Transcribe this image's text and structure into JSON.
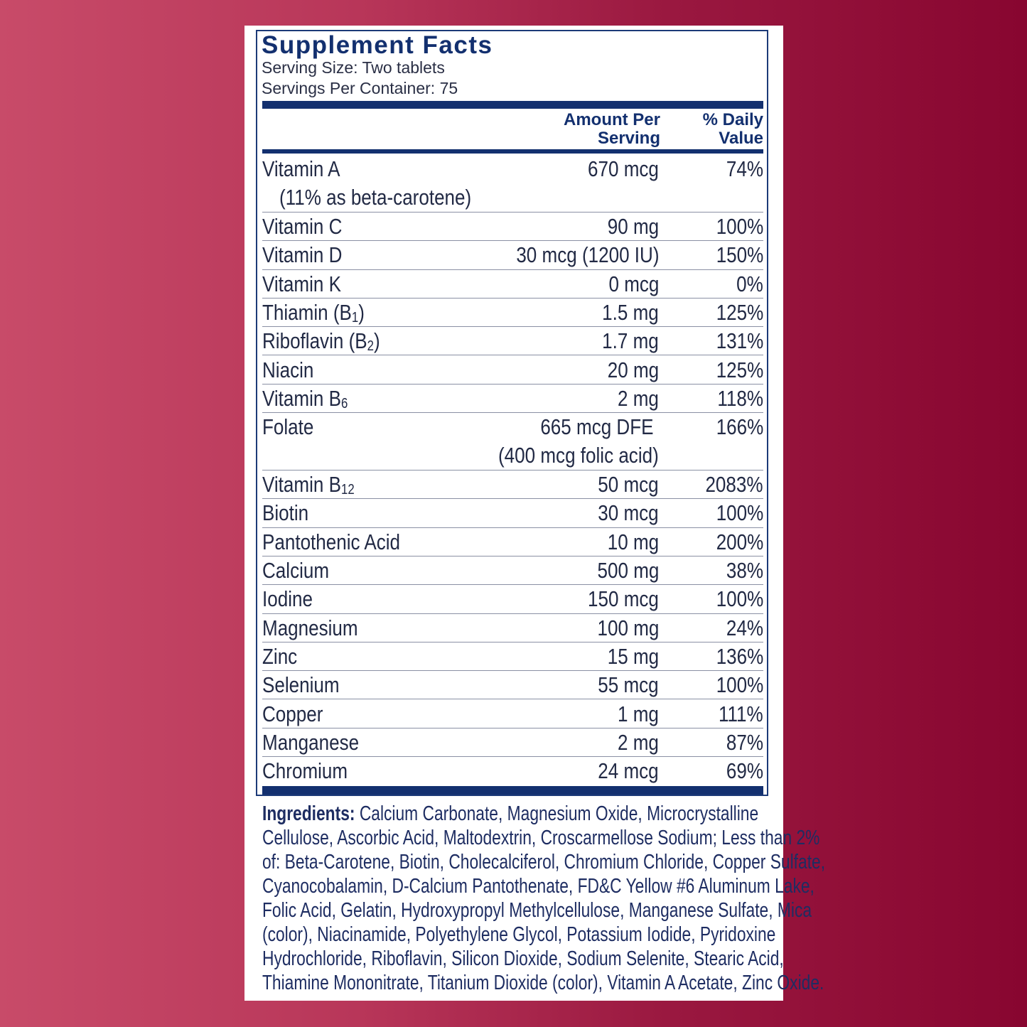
{
  "title": "Supplement Facts",
  "serving_size": "Serving Size: Two tablets",
  "servings_per_container": "Servings Per Container: 75",
  "header": {
    "amount_line1": "Amount Per",
    "amount_line2": "Serving",
    "dv_line1": "% Daily",
    "dv_line2": "Value"
  },
  "rows": [
    {
      "name": "Vitamin A",
      "amount": "670 mcg",
      "dv": "74%",
      "note": "(11% as beta-carotene)"
    },
    {
      "name": "Vitamin C",
      "amount": "90 mg",
      "dv": "100%"
    },
    {
      "name": "Vitamin D",
      "amount": "30 mcg (1200 IU)",
      "dv": "150%"
    },
    {
      "name": "Vitamin K",
      "amount": "0 mcg",
      "dv": "0%"
    },
    {
      "name": "Thiamin (B",
      "sub": "1",
      "tail": ")",
      "amount": "1.5 mg",
      "dv": "125%"
    },
    {
      "name": "Riboflavin (B",
      "sub": "2",
      "tail": ")",
      "amount": "1.7 mg",
      "dv": "131%"
    },
    {
      "name": "Niacin",
      "amount": "20 mg",
      "dv": "125%"
    },
    {
      "name": "Vitamin B",
      "sub": "6",
      "tail": "",
      "amount": "2 mg",
      "dv": "118%"
    },
    {
      "name": "Folate",
      "amount": "665 mcg DFE",
      "dv": "166%",
      "amount_note": "(400 mcg folic acid)"
    },
    {
      "name": "Vitamin B",
      "sub": "12",
      "tail": "",
      "amount": "50 mcg",
      "dv": "2083%"
    },
    {
      "name": "Biotin",
      "amount": "30 mcg",
      "dv": "100%"
    },
    {
      "name": "Pantothenic Acid",
      "amount": "10 mg",
      "dv": "200%"
    },
    {
      "name": "Calcium",
      "amount": "500 mg",
      "dv": "38%"
    },
    {
      "name": "Iodine",
      "amount": "150 mcg",
      "dv": "100%"
    },
    {
      "name": "Magnesium",
      "amount": "100 mg",
      "dv": "24%"
    },
    {
      "name": "Zinc",
      "amount": "15 mg",
      "dv": "136%"
    },
    {
      "name": "Selenium",
      "amount": "55 mcg",
      "dv": "100%"
    },
    {
      "name": "Copper",
      "amount": "1 mg",
      "dv": "111%"
    },
    {
      "name": "Manganese",
      "amount": "2 mg",
      "dv": "87%"
    },
    {
      "name": "Chromium",
      "amount": "24 mcg",
      "dv": "69%"
    }
  ],
  "ingredients": {
    "label": "Ingredients:",
    "lines": [
      " Calcium Carbonate, Magnesium Oxide, Microcrystalline",
      "Cellulose, Ascorbic Acid, Maltodextrin, Croscarmellose Sodium; Less than 2%",
      "of: Beta-Carotene, Biotin, Cholecalciferol, Chromium Chloride, Copper Sulfate,",
      "Cyanocobalamin, D-Calcium Pantothenate, FD&C Yellow #6 Aluminum Lake,",
      "Folic Acid, Gelatin, Hydroxypropyl Methylcellulose, Manganese Sulfate, Mica",
      "(color), Niacinamide, Polyethylene Glycol, Potassium Iodide, Pyridoxine",
      "Hydrochloride, Riboflavin, Silicon Dioxide, Sodium Selenite, Stearic Acid,",
      "Thiamine Mononitrate, Titanium Dioxide (color), Vitamin A Acetate, Zinc Oxide."
    ]
  },
  "colors": {
    "navy": "#13306f",
    "bg_left": "#c84b69",
    "bg_right": "#880630"
  }
}
